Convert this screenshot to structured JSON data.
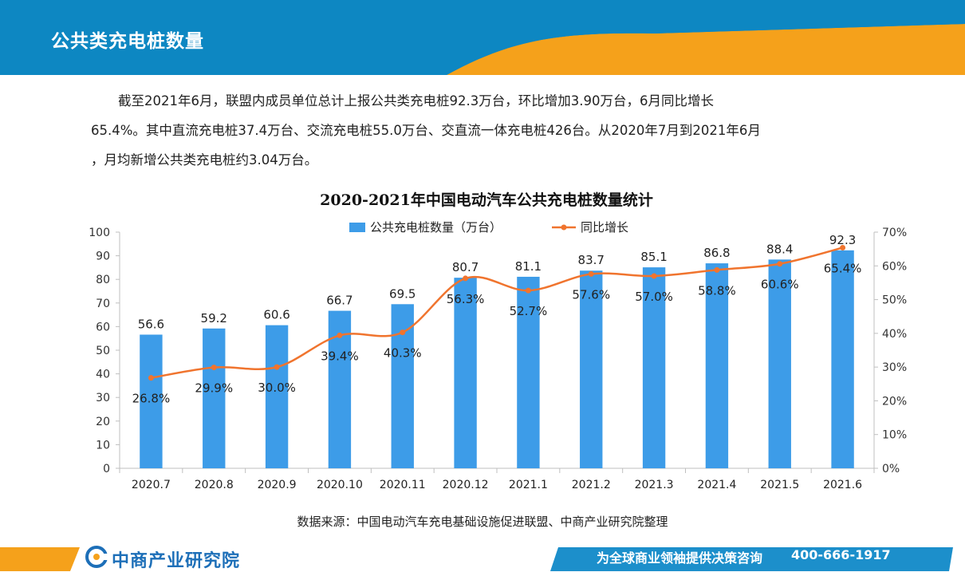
{
  "header": {
    "title": "公共类充电桩数量"
  },
  "body_text": {
    "line1": "截至2021年6月，联盟内成员单位总计上报公共类充电桩92.3万台，环比增加3.90万台，6月同比增长",
    "line2": "65.4%。其中直流充电桩37.4万台、交流充电桩55.0万台、交直流一体充电桩426台。从2020年7月到2021年6月",
    "line3": "，月均新增公共类充电桩约3.04万台。"
  },
  "chart_data": {
    "type": "bar",
    "title": "2020-2021年中国电动汽车公共充电桩数量统计",
    "categories": [
      "2020.7",
      "2020.8",
      "2020.9",
      "2020.10",
      "2020.11",
      "2020.12",
      "2021.1",
      "2021.2",
      "2021.3",
      "2021.4",
      "2021.5",
      "2021.6"
    ],
    "series": [
      {
        "name": "公共充电桩数量（万台）",
        "type": "bar",
        "axis": "left",
        "color": "#3d9ce8",
        "values": [
          56.6,
          59.2,
          60.6,
          66.7,
          69.5,
          80.7,
          81.1,
          83.7,
          85.1,
          86.8,
          88.4,
          92.3
        ],
        "labels": [
          "56.6",
          "59.2",
          "60.6",
          "66.7",
          "69.5",
          "80.7",
          "81.1",
          "83.7",
          "85.1",
          "86.8",
          "88.4",
          "92.3"
        ]
      },
      {
        "name": "同比增长",
        "type": "line",
        "axis": "right",
        "color": "#f0742e",
        "values": [
          26.8,
          29.9,
          30.0,
          39.4,
          40.3,
          56.3,
          52.7,
          57.6,
          57.0,
          58.8,
          60.6,
          65.4
        ],
        "labels": [
          "26.8%",
          "29.9%",
          "30.0%",
          "39.4%",
          "40.3%",
          "56.3%",
          "52.7%",
          "57.6%",
          "57.0%",
          "58.8%",
          "60.6%",
          "65.4%"
        ]
      }
    ],
    "y_left": {
      "min": 0,
      "max": 100,
      "ticks": [
        "0",
        "10",
        "20",
        "30",
        "40",
        "50",
        "60",
        "70",
        "80",
        "90",
        "100"
      ]
    },
    "y_right": {
      "min": 0,
      "max": 70,
      "ticks": [
        "0%",
        "10%",
        "20%",
        "30%",
        "40%",
        "50%",
        "60%",
        "70%"
      ]
    },
    "grid": false,
    "legend_position": "top"
  },
  "source": "数据来源：中国电动汽车充电基础设施促进联盟、中商产业研究院整理",
  "footer": {
    "logo_text": "中商产业研究院",
    "slogan": "为全球商业领袖提供决策咨询",
    "phone": "400-666-1917"
  },
  "colors": {
    "header_blue": "#0d87c2",
    "header_orange": "#f5a11b",
    "footer_blue": "#1c8fcb"
  }
}
